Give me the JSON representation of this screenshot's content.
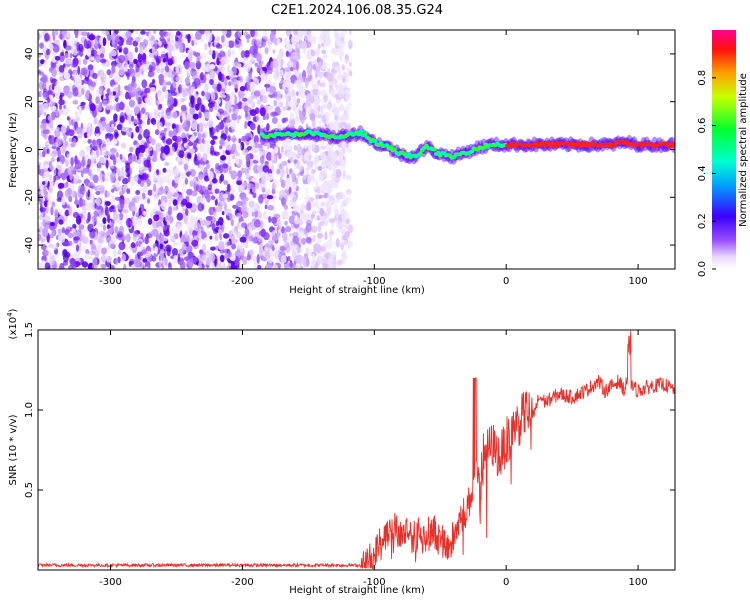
{
  "title": "C2E1.2024.106.08.35.G24",
  "colors": {
    "snr_line": "#e8302a",
    "ridge_gradient": [
      "#ff00ff",
      "#ff0000",
      "#ffff00",
      "#00ff00",
      "#00ffff",
      "#0000ff"
    ],
    "noise_purple": "#6a00ff"
  },
  "chart_data": [
    {
      "type": "heatmap",
      "xlabel": "Height of straight line (km)",
      "ylabel": "Frequency (Hz)",
      "xlim": [
        -355,
        128
      ],
      "ylim": [
        -50,
        50
      ],
      "x_ticks": [
        -300,
        -200,
        -100,
        0,
        100
      ],
      "y_ticks": [
        -40,
        -20,
        0,
        20,
        40
      ],
      "colorbar": {
        "label": "Normalized spectral amplitude",
        "range": [
          0,
          1
        ],
        "ticks": [
          0.0,
          0.2,
          0.4,
          0.6,
          0.8
        ]
      },
      "noise_region": {
        "x_range": [
          -355,
          -118
        ],
        "y_range": [
          -50,
          50
        ]
      },
      "ridge": {
        "x": [
          -185,
          -170,
          -150,
          -130,
          -120,
          -110,
          -100,
          -90,
          -80,
          -70,
          -60,
          -50,
          -40,
          -30,
          -20,
          -10,
          0,
          10,
          20,
          40,
          60,
          80,
          90,
          100,
          128
        ],
        "y": [
          6,
          6,
          7,
          5,
          6,
          7,
          3,
          1,
          -2,
          -3,
          1,
          -2,
          -3,
          -1,
          1,
          2,
          2,
          2,
          2,
          2,
          2,
          2,
          3,
          2,
          2
        ]
      }
    },
    {
      "type": "line",
      "xlabel": "Height of straight line (km)",
      "ylabel": "SNR (10 * v/v)",
      "y_multiplier": "(x10^4)",
      "xlim": [
        -355,
        128
      ],
      "ylim": [
        0,
        1.5
      ],
      "x_ticks": [
        -300,
        -200,
        -100,
        0,
        100
      ],
      "y_ticks": [
        0.5,
        1.0,
        1.5
      ],
      "series": [
        {
          "x": [
            -355,
            -250,
            -150,
            -110,
            -100,
            -95,
            -90,
            -85,
            -80,
            -75,
            -70,
            -65,
            -60,
            -55,
            -50,
            -45,
            -40,
            -35,
            -30,
            -27,
            -25,
            -22,
            -20,
            -15,
            -10,
            -5,
            0,
            5,
            10,
            15,
            20,
            25,
            30,
            40,
            50,
            60,
            70,
            75,
            80,
            85,
            90,
            93,
            95,
            100,
            110,
            120,
            128
          ],
          "y": [
            0.03,
            0.03,
            0.03,
            0.03,
            0.08,
            0.2,
            0.25,
            0.28,
            0.22,
            0.25,
            0.2,
            0.24,
            0.22,
            0.25,
            0.18,
            0.15,
            0.2,
            0.32,
            0.38,
            0.45,
            0.55,
            0.6,
            0.68,
            0.75,
            0.78,
            0.7,
            0.8,
            0.9,
            0.92,
            1.0,
            0.95,
            1.08,
            1.05,
            1.1,
            1.08,
            1.12,
            1.18,
            1.12,
            1.15,
            1.18,
            1.12,
            1.25,
            1.15,
            1.12,
            1.15,
            1.16,
            1.12
          ]
        }
      ]
    }
  ]
}
